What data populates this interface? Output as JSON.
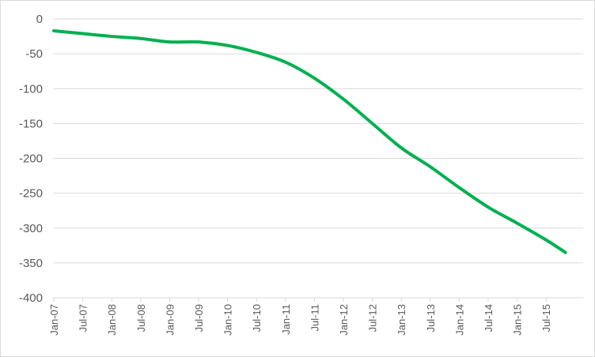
{
  "chart_data": {
    "type": "line",
    "title": "",
    "xlabel": "",
    "ylabel": "",
    "ylim": [
      -400,
      0
    ],
    "yticks": [
      0,
      -50,
      -100,
      -150,
      -200,
      -250,
      -300,
      -350,
      -400
    ],
    "x_tick_labels": [
      "Jan-07",
      "Jul-07",
      "Jan-08",
      "Jul-08",
      "Jan-09",
      "Jul-09",
      "Jan-10",
      "Jul-10",
      "Jan-11",
      "Jul-11",
      "Jan-12",
      "Jul-12",
      "Jan-13",
      "Jul-13",
      "Jan-14",
      "Jul-14",
      "Jan-15",
      "Jul-15"
    ],
    "grid": true,
    "legend": "none",
    "series": [
      {
        "color": "#00b050",
        "x": [
          "Jan-07",
          "Jul-07",
          "Jan-08",
          "Jul-08",
          "Jan-09",
          "Jul-09",
          "Jan-10",
          "Jul-10",
          "Jan-11",
          "Jul-11",
          "Jan-12",
          "Jul-12",
          "Jan-13",
          "Jul-13",
          "Jan-14",
          "Jul-14",
          "Jan-15",
          "Jul-15",
          "Nov-15"
        ],
        "values": [
          -17,
          -21,
          -25,
          -28,
          -33,
          -33,
          -38,
          -48,
          -62,
          -85,
          -115,
          -150,
          -185,
          -212,
          -242,
          -270,
          -293,
          -317,
          -335
        ]
      }
    ]
  }
}
